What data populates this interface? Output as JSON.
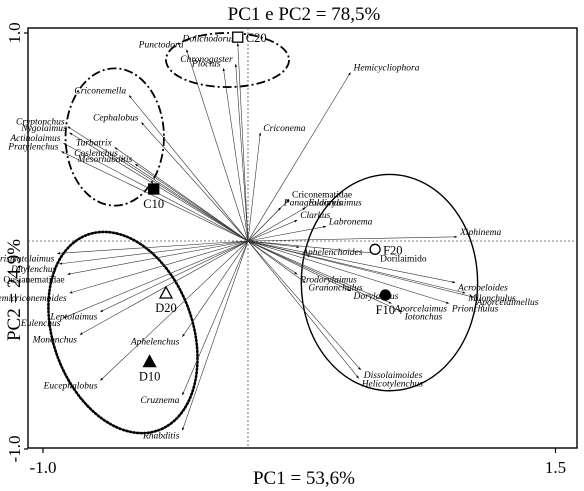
{
  "chart_data": {
    "type": "scatter",
    "subtype": "pca-biplot",
    "title": "PC1 e PC2 = 78,5%",
    "xlabel": "PC1 = 53,6%",
    "ylabel": "PC2 = 24,9%",
    "xlim": [
      -1.0,
      1.5
    ],
    "ylim": [
      -1.0,
      1.0
    ],
    "x_ticks": [
      {
        "v": -1.0,
        "t": "-1.0"
      },
      {
        "v": 1.5,
        "t": "1.5"
      }
    ],
    "y_ticks": [
      {
        "v": 1.0,
        "t": "1.0"
      },
      {
        "v": -1.0,
        "t": "-1.0"
      }
    ],
    "reference_lines": {
      "x": 0,
      "y": 0
    },
    "loadings": [
      {
        "name": "Dolichodorus",
        "x": -0.05,
        "y": 0.95
      },
      {
        "name": "Punctodora",
        "x": -0.3,
        "y": 0.92
      },
      {
        "name": "Chronogaster",
        "x": -0.06,
        "y": 0.85
      },
      {
        "name": "Ploctus",
        "x": -0.12,
        "y": 0.83
      },
      {
        "name": "Hemicycliophora",
        "x": 0.5,
        "y": 0.81
      },
      {
        "name": "Criconemella",
        "x": -0.58,
        "y": 0.7
      },
      {
        "name": "Cephalobus",
        "x": -0.52,
        "y": 0.57
      },
      {
        "name": "Cryptonchus",
        "x": -0.88,
        "y": 0.55
      },
      {
        "name": "Nygolaimus",
        "x": -0.87,
        "y": 0.52
      },
      {
        "name": "Actinolaimus",
        "x": -0.9,
        "y": 0.47
      },
      {
        "name": "Pratylenchus",
        "x": -0.91,
        "y": 0.43
      },
      {
        "name": "Turbatrix",
        "x": -0.65,
        "y": 0.45
      },
      {
        "name": "Coslenchus",
        "x": -0.62,
        "y": 0.4
      },
      {
        "name": "Mesorhabditis",
        "x": -0.55,
        "y": 0.37
      },
      {
        "name": "Criconema",
        "x": 0.06,
        "y": 0.52
      },
      {
        "name": "Criconematidae",
        "x": 0.2,
        "y": 0.2
      },
      {
        "name": "Panagrolaimus",
        "x": 0.16,
        "y": 0.16
      },
      {
        "name": "Eudorylaimus",
        "x": 0.28,
        "y": 0.16
      },
      {
        "name": "Clarkus",
        "x": 0.24,
        "y": 0.1
      },
      {
        "name": "Labronema",
        "x": 0.38,
        "y": 0.07
      },
      {
        "name": "Xiphinema",
        "x": 1.02,
        "y": 0.02
      },
      {
        "name": "Aphelenchoides",
        "x": 0.25,
        "y": -0.03
      },
      {
        "name": "Dorilaimido",
        "x": 0.63,
        "y": -0.06
      },
      {
        "name": "Prodorylaimus",
        "x": 0.24,
        "y": -0.16
      },
      {
        "name": "Granonchulus",
        "x": 0.28,
        "y": -0.2
      },
      {
        "name": "Dorylaimus",
        "x": 0.5,
        "y": -0.24
      },
      {
        "name": "Acrobeloides",
        "x": 1.01,
        "y": -0.2
      },
      {
        "name": "Milonchulus",
        "x": 1.06,
        "y": -0.25
      },
      {
        "name": "Aporcelaimellus",
        "x": 1.1,
        "y": -0.27
      },
      {
        "name": "Prionchulus",
        "x": 0.98,
        "y": -0.3
      },
      {
        "name": "Aporcelaimus",
        "x": 0.7,
        "y": -0.3
      },
      {
        "name": "Iotonchus",
        "x": 0.75,
        "y": -0.34
      },
      {
        "name": "Dissolaimoides",
        "x": 0.55,
        "y": -0.62
      },
      {
        "name": "Helicotylenchus",
        "x": 0.54,
        "y": -0.66
      },
      {
        "name": "Prismatolaimus",
        "x": -0.93,
        "y": -0.06
      },
      {
        "name": "Ditylenchus",
        "x": -0.92,
        "y": -0.11
      },
      {
        "name": "Qusianematidae",
        "x": -0.88,
        "y": -0.16
      },
      {
        "name": "Hemicriconemoides",
        "x": -0.87,
        "y": -0.25
      },
      {
        "name": "Leptolaimus",
        "x": -0.72,
        "y": -0.34
      },
      {
        "name": "Eulenchus",
        "x": -0.9,
        "y": -0.37
      },
      {
        "name": "Mononchus",
        "x": -0.82,
        "y": -0.45
      },
      {
        "name": "Aphelenchus",
        "x": -0.32,
        "y": -0.46
      },
      {
        "name": "Eucephalobus",
        "x": -0.72,
        "y": -0.67
      },
      {
        "name": "Cruznema",
        "x": -0.32,
        "y": -0.74
      },
      {
        "name": "Rhabditis",
        "x": -0.32,
        "y": -0.91
      }
    ],
    "treatments": [
      {
        "name": "C20",
        "marker": "open-square",
        "x": -0.05,
        "y": 0.98
      },
      {
        "name": "C10",
        "marker": "filled-square",
        "x": -0.46,
        "y": 0.25
      },
      {
        "name": "F20",
        "marker": "open-circle",
        "x": 0.62,
        "y": -0.04
      },
      {
        "name": "F10",
        "marker": "filled-circle",
        "x": 0.67,
        "y": -0.26
      },
      {
        "name": "D20",
        "marker": "open-triangle",
        "x": -0.4,
        "y": -0.25
      },
      {
        "name": "D10",
        "marker": "filled-triangle",
        "x": -0.48,
        "y": -0.58
      }
    ],
    "ellipses": [
      {
        "group": "C20",
        "style": "dash-dot",
        "cx": -0.1,
        "cy": 0.87,
        "rx": 0.3,
        "ry": 0.13,
        "angle": 0
      },
      {
        "group": "C10",
        "style": "dash-dot",
        "cx": -0.65,
        "cy": 0.5,
        "rx": 0.24,
        "ry": 0.33,
        "angle": 0
      },
      {
        "group": "D",
        "style": "dotted",
        "cx": -0.61,
        "cy": -0.44,
        "rx": 0.34,
        "ry": 0.5,
        "angle": -20
      },
      {
        "group": "F",
        "style": "solid",
        "cx": 0.69,
        "cy": -0.2,
        "rx": 0.43,
        "ry": 0.52,
        "angle": 0
      }
    ]
  }
}
